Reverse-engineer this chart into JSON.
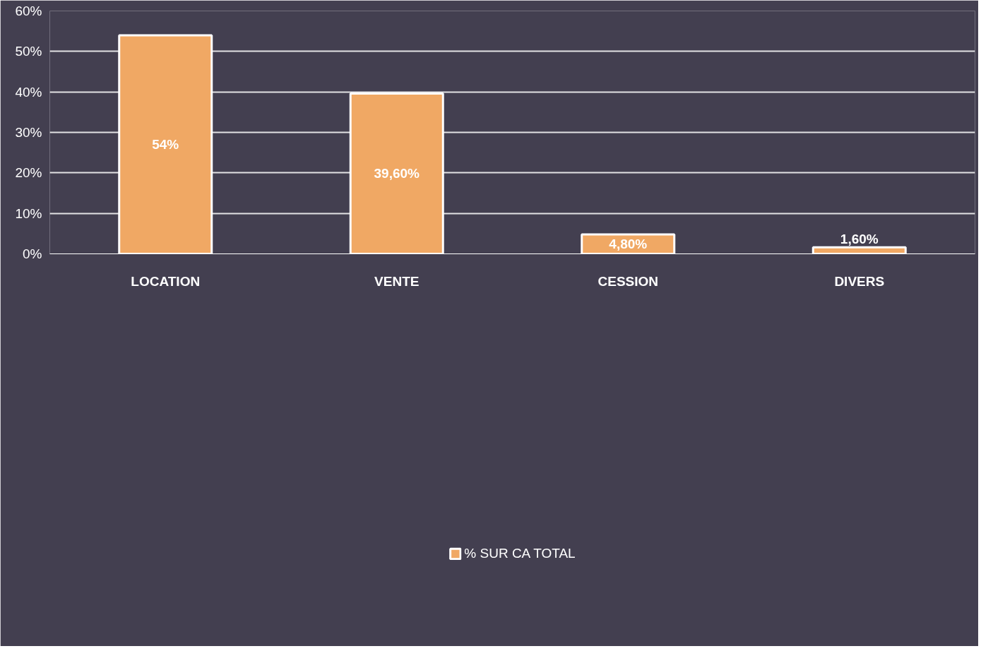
{
  "chart_data": {
    "type": "bar",
    "categories": [
      "LOCATION",
      "VENTE",
      "CESSION",
      "DIVERS"
    ],
    "series": [
      {
        "name": "% SUR CA TOTAL",
        "color": "#f0a864",
        "values": [
          54,
          39.6,
          4.8,
          1.6
        ]
      }
    ],
    "value_labels": [
      "54%",
      "39,60%",
      "4,80%",
      "1,60%"
    ],
    "ylim": [
      0,
      60
    ],
    "yticks": [
      {
        "value": 0,
        "label": "0%"
      },
      {
        "value": 10,
        "label": "10%"
      },
      {
        "value": 20,
        "label": "20%"
      },
      {
        "value": 30,
        "label": "30%"
      },
      {
        "value": 40,
        "label": "40%"
      },
      {
        "value": 50,
        "label": "50%"
      },
      {
        "value": 60,
        "label": "60%"
      }
    ],
    "grid": "y",
    "legend": "bottom"
  }
}
